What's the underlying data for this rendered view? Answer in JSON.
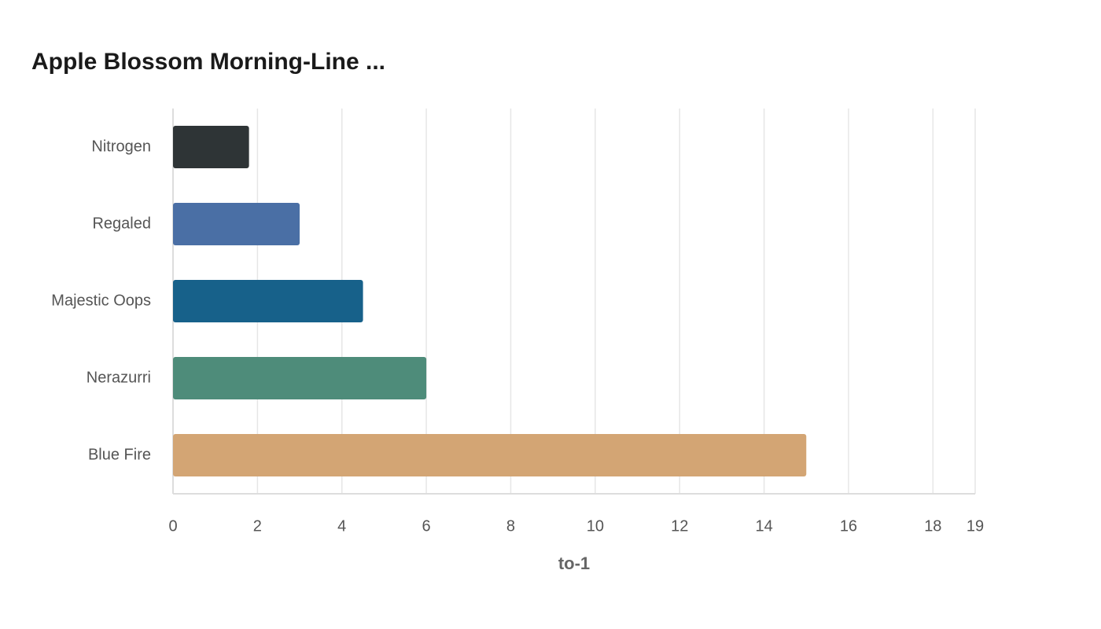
{
  "chart_data": {
    "type": "bar",
    "orientation": "horizontal",
    "title": "Apple Blossom Morning-Line ...",
    "x_label": "to-1",
    "categories": [
      "Nitrogen",
      "Regaled",
      "Majestic Oops",
      "Nerazurri",
      "Blue Fire"
    ],
    "values": [
      1.8,
      3,
      4.5,
      6,
      15
    ],
    "colors": [
      "#2e3436",
      "#4a6fa5",
      "#17618a",
      "#4e8c7a",
      "#d3a574"
    ],
    "xlim": [
      0,
      19
    ],
    "xticks": [
      0,
      2,
      4,
      6,
      8,
      10,
      12,
      14,
      16,
      18,
      19
    ],
    "grid": true
  }
}
